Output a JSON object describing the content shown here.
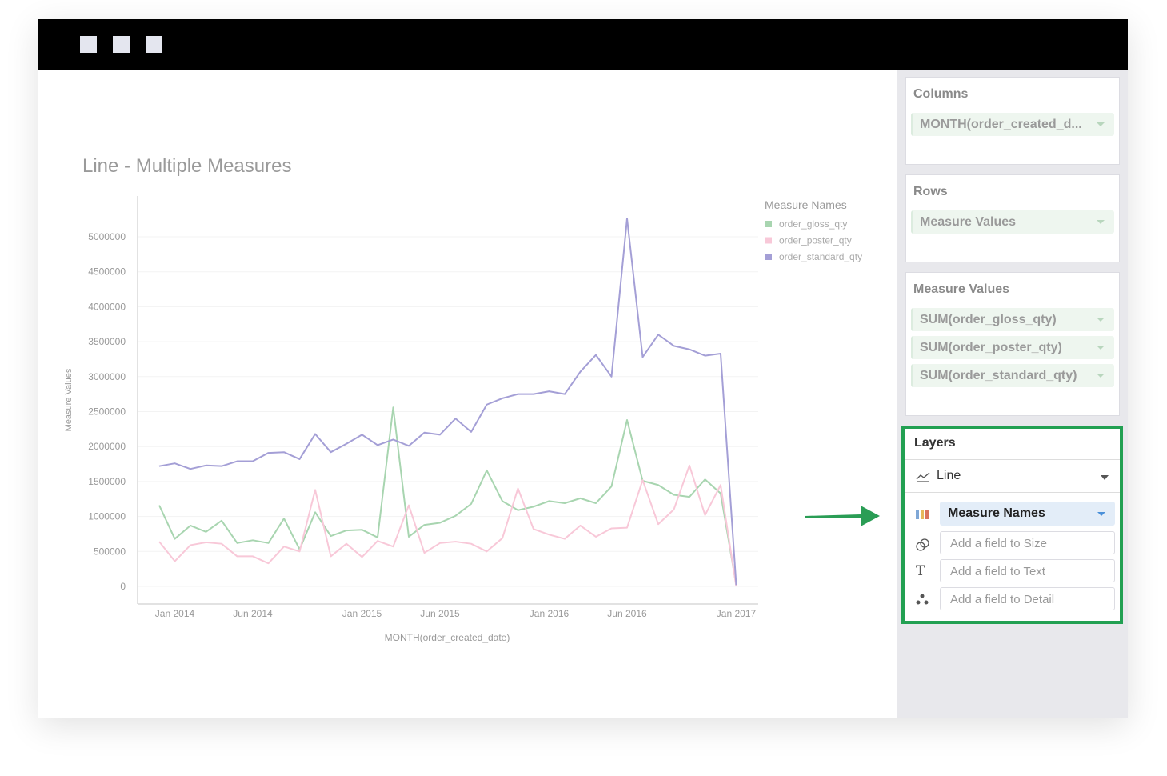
{
  "chart_title": "Line - Multiple Measures",
  "shelves": {
    "columns": {
      "title": "Columns",
      "pills": [
        "MONTH(order_created_d..."
      ]
    },
    "rows": {
      "title": "Rows",
      "pills": [
        "Measure Values"
      ]
    },
    "measure_values": {
      "title": "Measure Values",
      "pills": [
        "SUM(order_gloss_qty)",
        "SUM(order_poster_qty)",
        "SUM(order_standard_qty)"
      ]
    }
  },
  "layers": {
    "title": "Layers",
    "mark_type": "Line",
    "color_field": "Measure Names",
    "size_placeholder": "Add a field to Size",
    "text_placeholder": "Add a field to Text",
    "detail_placeholder": "Add a field to Detail",
    "highlight_color": "#22a052"
  },
  "icons": {
    "mark": "line-chart-icon",
    "color": "color-palette-icon",
    "size": "size-circles-icon",
    "text": "text-T-icon",
    "detail": "detail-dots-icon",
    "annotation": "green-arrow-icon"
  },
  "chart_data": {
    "type": "line",
    "title": "Line - Multiple Measures",
    "xlabel": "MONTH(order_created_date)",
    "ylabel": "Measure Values",
    "ylim": [
      0,
      5000000
    ],
    "yticks": [
      "0",
      "500000",
      "1000000",
      "1500000",
      "2000000",
      "2500000",
      "3000000",
      "3500000",
      "4000000",
      "4500000",
      "5000000"
    ],
    "xticks": [
      {
        "date": "2014-01",
        "label": "Jan 2014"
      },
      {
        "date": "2014-06",
        "label": "Jun 2014"
      },
      {
        "date": "2015-01",
        "label": "Jan 2015"
      },
      {
        "date": "2015-06",
        "label": "Jun 2015"
      },
      {
        "date": "2016-01",
        "label": "Jan 2016"
      },
      {
        "date": "2016-06",
        "label": "Jun 2016"
      },
      {
        "date": "2017-01",
        "label": "Jan 2017"
      }
    ],
    "grid": true,
    "legend_title": "Measure Names",
    "legend_position": "right",
    "x_start": "2013-12",
    "x_end": "2017-01",
    "series": [
      {
        "name": "order_gloss_qty",
        "color": "#a8d5b0",
        "values": [
          1160000,
          680000,
          870000,
          780000,
          940000,
          620000,
          660000,
          620000,
          970000,
          530000,
          1060000,
          720000,
          800000,
          810000,
          700000,
          2560000,
          710000,
          880000,
          910000,
          1010000,
          1180000,
          1660000,
          1220000,
          1090000,
          1140000,
          1220000,
          1190000,
          1260000,
          1190000,
          1430000,
          2380000,
          1510000,
          1450000,
          1310000,
          1280000,
          1530000,
          1330000,
          20000
        ]
      },
      {
        "name": "order_poster_qty",
        "color": "#f8c8d8",
        "values": [
          640000,
          360000,
          590000,
          630000,
          610000,
          430000,
          430000,
          330000,
          570000,
          500000,
          1380000,
          430000,
          610000,
          420000,
          650000,
          570000,
          1160000,
          480000,
          620000,
          640000,
          610000,
          500000,
          690000,
          1400000,
          820000,
          740000,
          680000,
          870000,
          710000,
          830000,
          840000,
          1520000,
          890000,
          1100000,
          1730000,
          1020000,
          1450000,
          0
        ]
      },
      {
        "name": "order_standard_qty",
        "color": "#a49fd6",
        "values": [
          1720000,
          1760000,
          1680000,
          1730000,
          1720000,
          1790000,
          1790000,
          1910000,
          1920000,
          1820000,
          2180000,
          1920000,
          2040000,
          2170000,
          2020000,
          2100000,
          2010000,
          2200000,
          2170000,
          2400000,
          2210000,
          2600000,
          2690000,
          2750000,
          2750000,
          2790000,
          2750000,
          3070000,
          3310000,
          3000000,
          5260000,
          3280000,
          3600000,
          3440000,
          3390000,
          3300000,
          3330000,
          20000
        ]
      }
    ]
  }
}
